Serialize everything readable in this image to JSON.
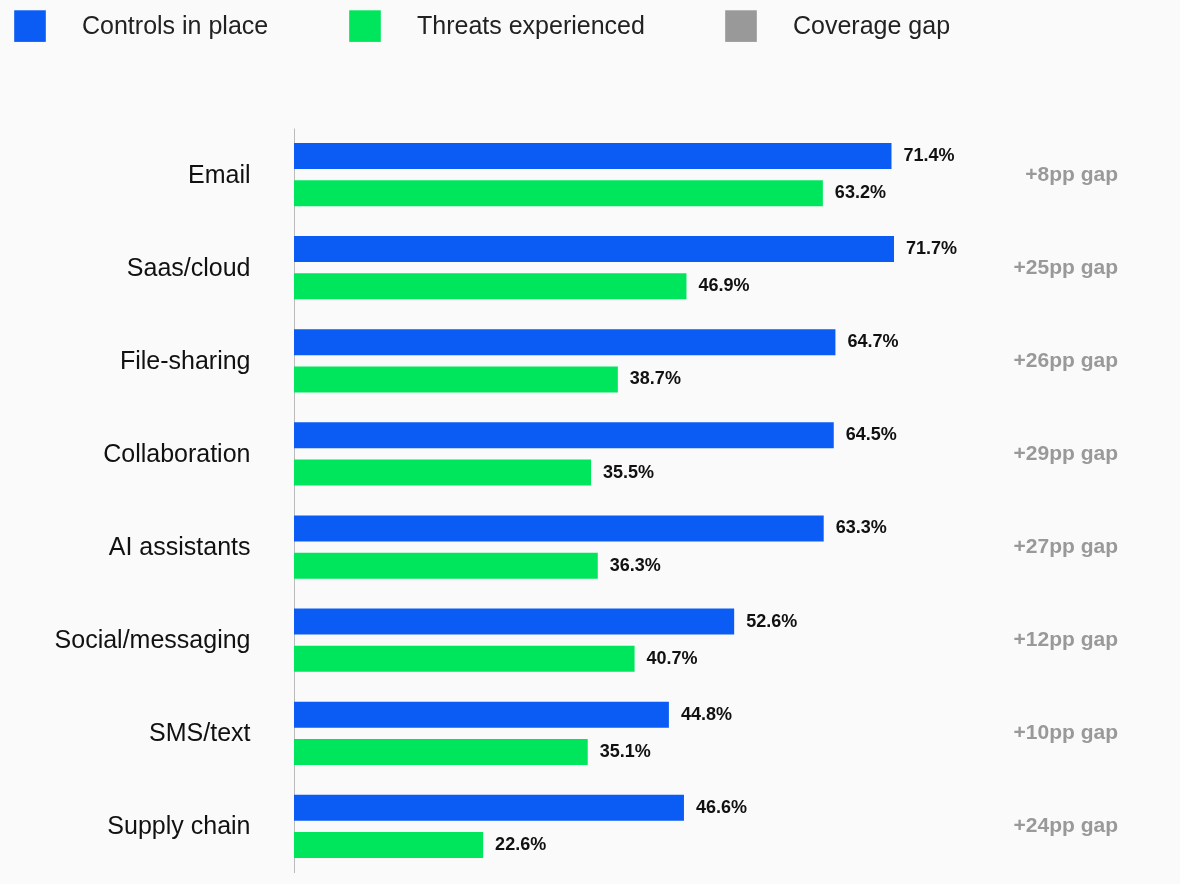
{
  "chart_data": {
    "type": "bar",
    "orientation": "horizontal",
    "legend": "top left",
    "categories": [
      "Email",
      "Saas/cloud",
      "File-sharing",
      "Collaboration",
      "AI assistants",
      "Social/messaging",
      "SMS/text",
      "Supply chain"
    ],
    "series": [
      {
        "name": "Controls in place",
        "color": "#0a5cf5",
        "values": [
          71.4,
          71.7,
          64.7,
          64.5,
          63.3,
          52.6,
          44.8,
          46.6
        ],
        "value_labels": [
          "71.4%",
          "71.7%",
          "64.7%",
          "64.5%",
          "63.3%",
          "52.6%",
          "44.8%",
          "46.6%"
        ]
      },
      {
        "name": "Threats experienced",
        "color": "#00e65c",
        "values": [
          63.2,
          46.9,
          38.7,
          35.5,
          36.3,
          40.7,
          35.1,
          22.6
        ],
        "value_labels": [
          "63.2%",
          "46.9%",
          "38.7%",
          "35.5%",
          "36.3%",
          "40.7%",
          "35.1%",
          "22.6%"
        ]
      },
      {
        "name": "Coverage gap",
        "color": "#999999",
        "values": [
          null,
          null,
          null,
          null,
          null,
          null,
          null,
          null
        ]
      }
    ],
    "annotations": [
      "+8pp gap",
      "+25pp gap",
      "+26pp gap",
      "+29pp gap",
      "+27pp gap",
      "+12pp gap",
      "+10pp gap",
      "+24pp gap"
    ]
  }
}
